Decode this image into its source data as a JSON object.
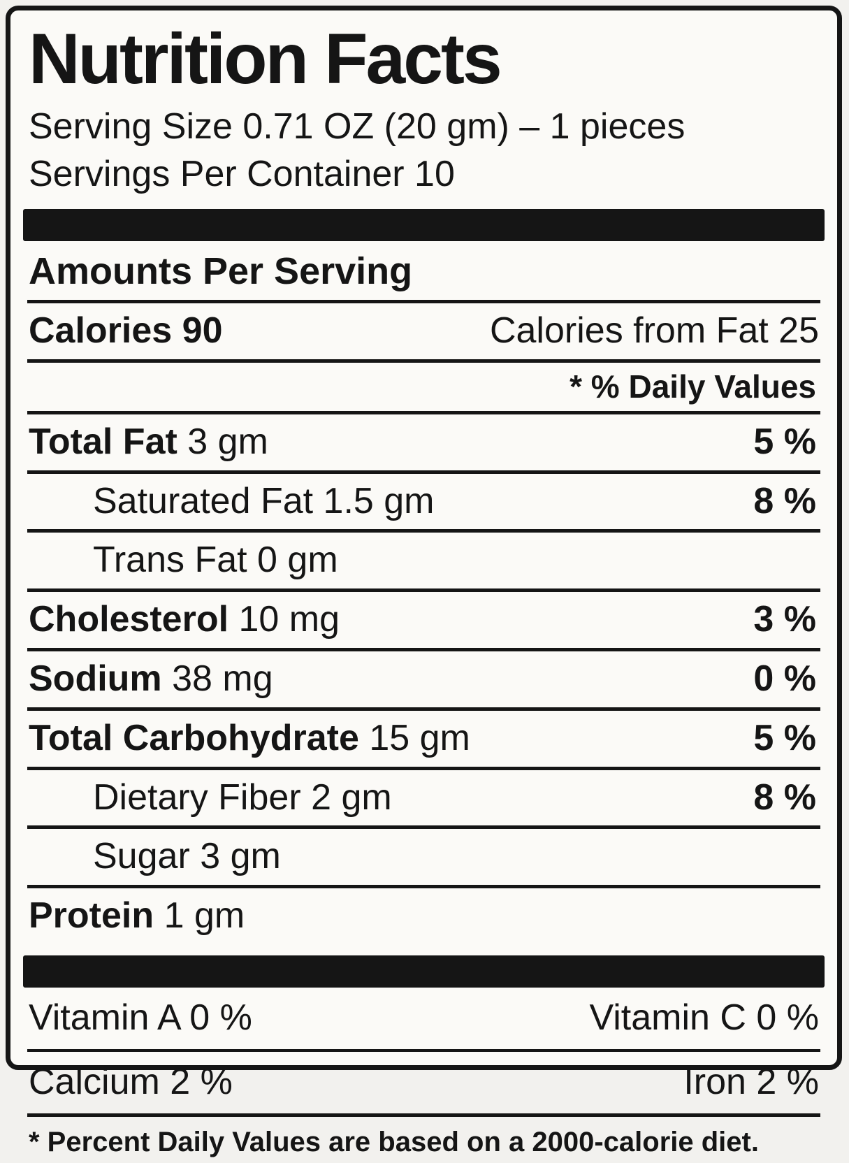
{
  "title": "Nutrition Facts",
  "serving": {
    "size_line": "Serving Size 0.71 OZ (20 gm) – 1 pieces",
    "per_container_line": "Servings Per Container 10"
  },
  "amounts_header": "Amounts Per Serving",
  "calories": {
    "left": "Calories 90",
    "right": "Calories from Fat 25"
  },
  "daily_values_header": "* % Daily Values",
  "nutrients": [
    {
      "name": "Total Fat",
      "amount": "3 gm",
      "dv": "5 %"
    },
    {
      "name": "Saturated Fat",
      "amount": "1.5 gm",
      "dv": "8 %"
    },
    {
      "name": "Trans Fat",
      "amount": "0  gm",
      "dv": ""
    },
    {
      "name": "Cholesterol",
      "amount": "10 mg",
      "dv": "3 %"
    },
    {
      "name": "Sodium",
      "amount": "38 mg",
      "dv": "0 %"
    },
    {
      "name": "Total Carbohydrate",
      "amount": "15 gm",
      "dv": "5 %"
    },
    {
      "name": "Dietary Fiber",
      "amount": "2 gm",
      "dv": "8 %"
    },
    {
      "name": "Sugar",
      "amount": "3 gm",
      "dv": ""
    },
    {
      "name": "Protein",
      "amount": "1 gm",
      "dv": ""
    }
  ],
  "vitamins": [
    {
      "left": "Vitamin A 0 %",
      "right": "Vitamin C 0 %"
    },
    {
      "left": "Calcium 2 %",
      "right": "Iron 2 %"
    }
  ],
  "footnote": "* Percent Daily Values are based on a 2000-calorie diet.",
  "colors": {
    "ink": "#151515",
    "paper": "#fbfaf7"
  }
}
